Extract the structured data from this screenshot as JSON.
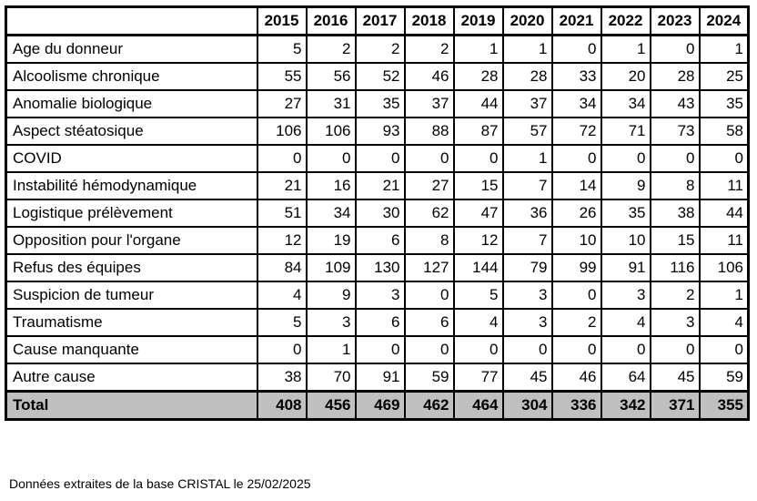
{
  "table": {
    "header_label": "",
    "years": [
      "2015",
      "2016",
      "2017",
      "2018",
      "2019",
      "2020",
      "2021",
      "2022",
      "2023",
      "2024"
    ],
    "rows": [
      {
        "label": "Age du donneur",
        "values": [
          5,
          2,
          2,
          2,
          1,
          1,
          0,
          1,
          0,
          1
        ]
      },
      {
        "label": "Alcoolisme chronique",
        "values": [
          55,
          56,
          52,
          46,
          28,
          28,
          33,
          20,
          28,
          25
        ]
      },
      {
        "label": "Anomalie biologique",
        "values": [
          27,
          31,
          35,
          37,
          44,
          37,
          34,
          34,
          43,
          35
        ]
      },
      {
        "label": "Aspect stéatosique",
        "values": [
          106,
          106,
          93,
          88,
          87,
          57,
          72,
          71,
          73,
          58
        ]
      },
      {
        "label": "COVID",
        "values": [
          0,
          0,
          0,
          0,
          0,
          1,
          0,
          0,
          0,
          0
        ]
      },
      {
        "label": "Instabilité hémodynamique",
        "values": [
          21,
          16,
          21,
          27,
          15,
          7,
          14,
          9,
          8,
          11
        ]
      },
      {
        "label": "Logistique prélèvement",
        "values": [
          51,
          34,
          30,
          62,
          47,
          36,
          26,
          35,
          38,
          44
        ]
      },
      {
        "label": "Opposition pour l'organe",
        "values": [
          12,
          19,
          6,
          8,
          12,
          7,
          10,
          10,
          15,
          11
        ]
      },
      {
        "label": "Refus des équipes",
        "values": [
          84,
          109,
          130,
          127,
          144,
          79,
          99,
          91,
          116,
          106
        ]
      },
      {
        "label": "Suspicion de tumeur",
        "values": [
          4,
          9,
          3,
          0,
          5,
          3,
          0,
          3,
          2,
          1
        ]
      },
      {
        "label": "Traumatisme",
        "values": [
          5,
          3,
          6,
          6,
          4,
          3,
          2,
          4,
          3,
          4
        ]
      },
      {
        "label": "Cause manquante",
        "values": [
          0,
          1,
          0,
          0,
          0,
          0,
          0,
          0,
          0,
          0
        ]
      },
      {
        "label": "Autre cause",
        "values": [
          38,
          70,
          91,
          59,
          77,
          45,
          46,
          64,
          45,
          59
        ]
      }
    ],
    "total": {
      "label": "Total",
      "values": [
        408,
        456,
        469,
        462,
        464,
        304,
        336,
        342,
        371,
        355
      ]
    },
    "total_background": "#c0c0c0"
  },
  "footnote": "Données extraites de la base CRISTAL le 25/02/2025"
}
